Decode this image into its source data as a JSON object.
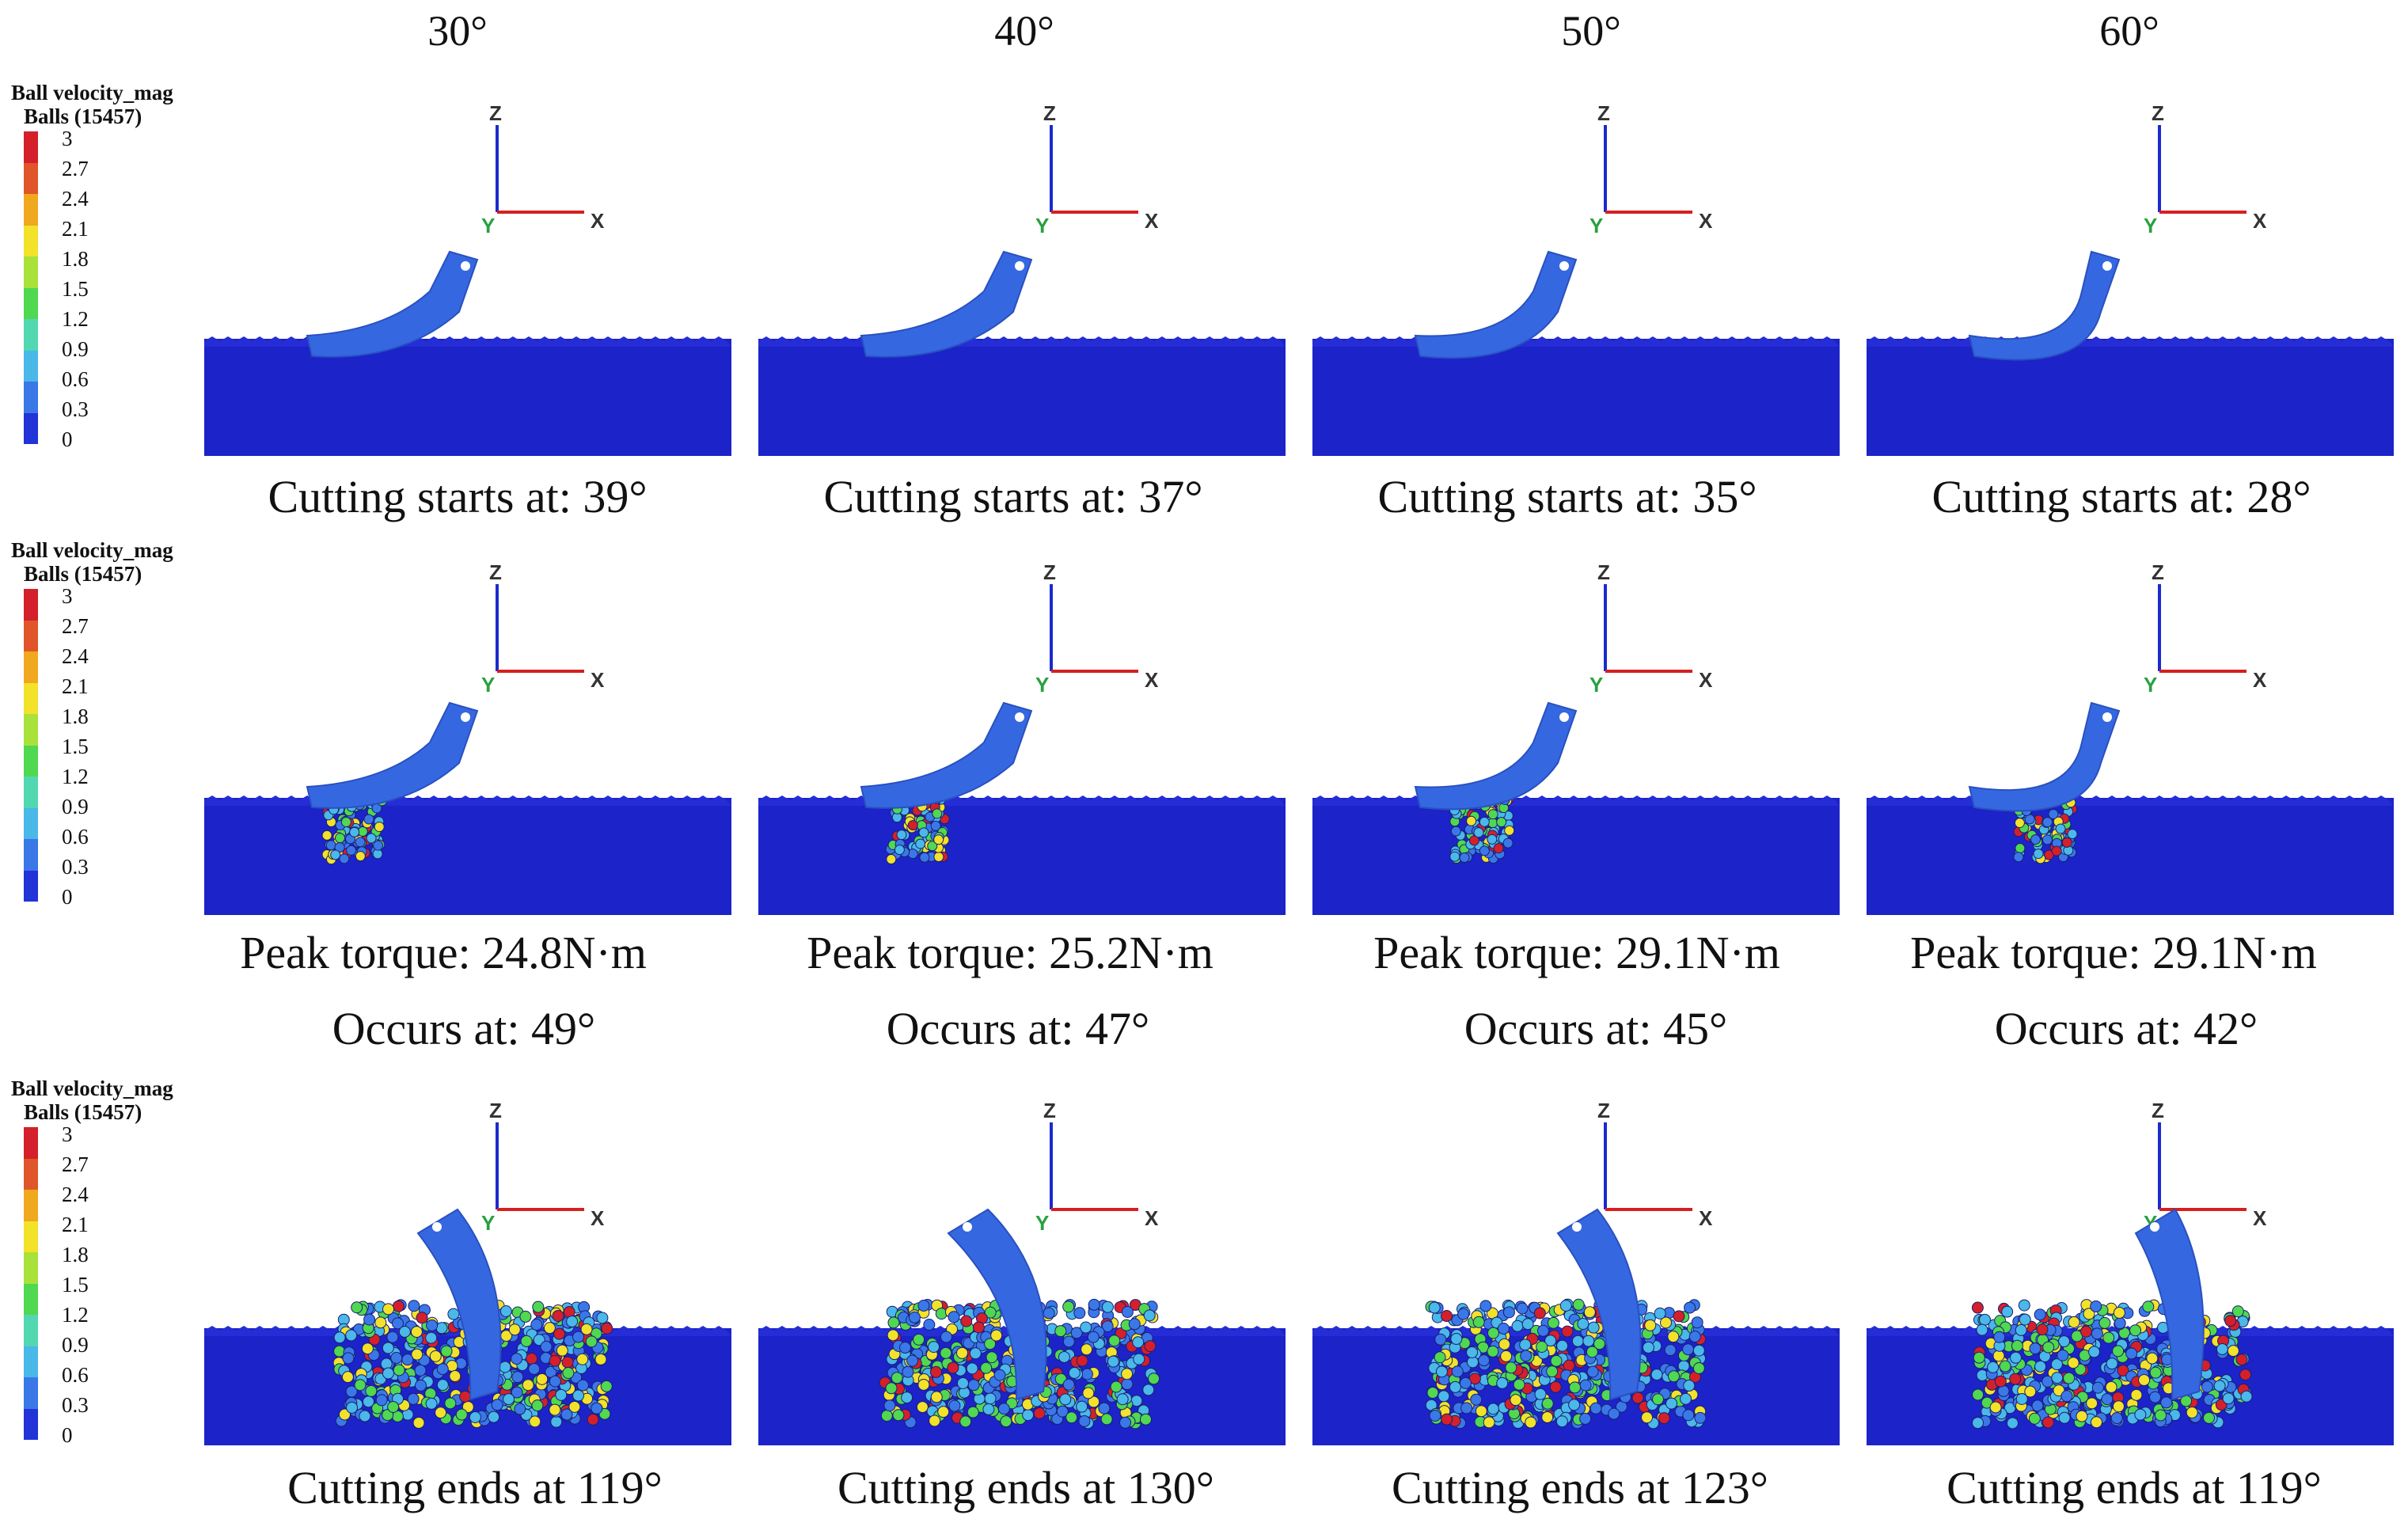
{
  "columns": [
    {
      "angle": "30°"
    },
    {
      "angle": "40°"
    },
    {
      "angle": "50°"
    },
    {
      "angle": "60°"
    }
  ],
  "legend": {
    "title_line1": "Ball velocity_mag",
    "title_line2": "Balls (15457)",
    "ticks": [
      "3",
      "2.7",
      "2.4",
      "2.1",
      "1.8",
      "1.5",
      "1.2",
      "0.9",
      "0.6",
      "0.3",
      "0"
    ],
    "colors": [
      "#d4202a",
      "#e0552a",
      "#f0a81e",
      "#f2e22a",
      "#a8e23a",
      "#50d850",
      "#52d8b0",
      "#4ab8e8",
      "#3a78e8",
      "#2233d8"
    ]
  },
  "axes": {
    "z": "Z",
    "x": "X",
    "y": "Y"
  },
  "colors": {
    "soil": "#1c23c8",
    "blade": "#3568e0",
    "axis_z": "#1a2ad0",
    "axis_x": "#d42020",
    "axis_y": "#2aa040"
  },
  "rows": [
    {
      "stage": "cutting-start",
      "captions": [
        {
          "line1": "Cutting starts at: 39°"
        },
        {
          "line1": "Cutting starts at: 37°"
        },
        {
          "line1": "Cutting starts at: 35°"
        },
        {
          "line1": "Cutting starts at: 28°"
        }
      ]
    },
    {
      "stage": "peak-torque",
      "captions": [
        {
          "line1": "Peak torque: 24.8N·m",
          "line2": "Occurs at: 49°"
        },
        {
          "line1": "Peak torque: 25.2N·m",
          "line2": "Occurs at: 47°"
        },
        {
          "line1": "Peak torque: 29.1N·m",
          "line2": "Occurs at: 45°"
        },
        {
          "line1": "Peak torque: 29.1N·m",
          "line2": "Occurs at: 42°"
        }
      ]
    },
    {
      "stage": "cutting-end",
      "captions": [
        {
          "line1": "Cutting ends at 119°"
        },
        {
          "line1": "Cutting ends at 130°"
        },
        {
          "line1": "Cutting ends at 123°"
        },
        {
          "line1": "Cutting ends at 119°"
        }
      ]
    }
  ]
}
